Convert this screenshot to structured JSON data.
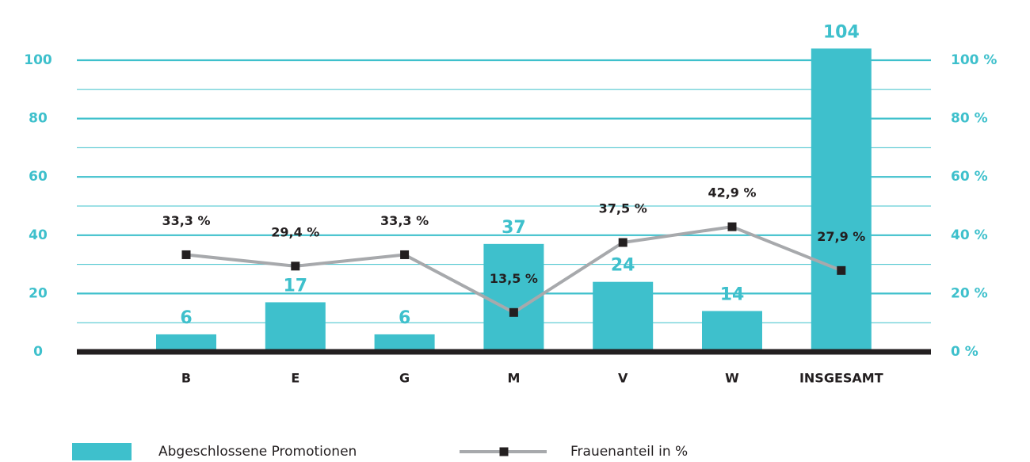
{
  "chart_data": {
    "type": "bar_line",
    "categories": [
      "B",
      "E",
      "G",
      "M",
      "V",
      "W",
      "INSGESAMT"
    ],
    "series": [
      {
        "name": "Abgeschlossene Promotionen",
        "type": "bar",
        "color": "#3ec0cc",
        "values": [
          6,
          17,
          6,
          37,
          24,
          14,
          104
        ]
      },
      {
        "name": "Frauenanteil in %",
        "type": "line",
        "axis": "y2",
        "color": "#a7a9ac",
        "marker_color": "#231f20",
        "values": [
          33.3,
          29.4,
          33.3,
          13.5,
          37.5,
          42.9,
          27.9
        ],
        "value_labels": [
          "33,3 %",
          "29,4 %",
          "33,3 %",
          "13,5 %",
          "37,5 %",
          "42,9 %",
          "27,9 %"
        ]
      }
    ],
    "ylim": [
      0,
      100
    ],
    "yticks": [
      0,
      20,
      40,
      60,
      80,
      100
    ],
    "minor_yticks": [
      10,
      30,
      50,
      70,
      90
    ],
    "y2lim": [
      0,
      100
    ],
    "y2ticks": [
      {
        "value": 0,
        "label": "0 %"
      },
      {
        "value": 20,
        "label": "20 %"
      },
      {
        "value": 40,
        "label": "40 %"
      },
      {
        "value": 60,
        "label": "60 %"
      },
      {
        "value": 80,
        "label": "80 %"
      },
      {
        "value": 100,
        "label": "100 %"
      }
    ],
    "grid": true,
    "legend": "bottom"
  }
}
